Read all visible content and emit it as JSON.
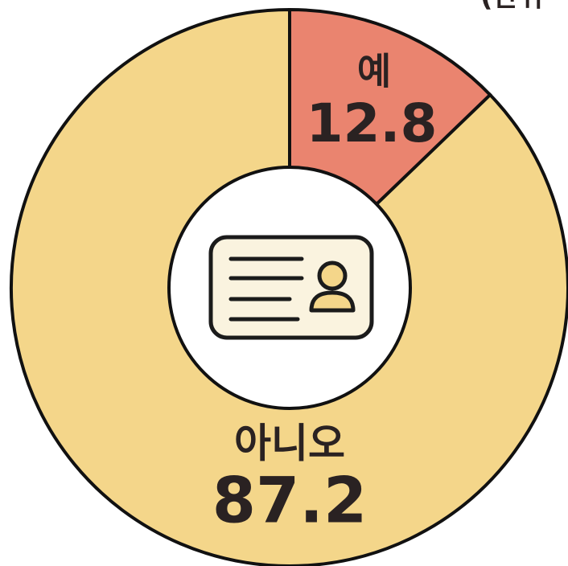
{
  "chart_data": {
    "type": "donut",
    "unit": "(단위",
    "categories": [
      "예",
      "아니오"
    ],
    "values": [
      12.8,
      87.2
    ],
    "colors": [
      "#ea846f",
      "#f4d68a"
    ]
  }
}
